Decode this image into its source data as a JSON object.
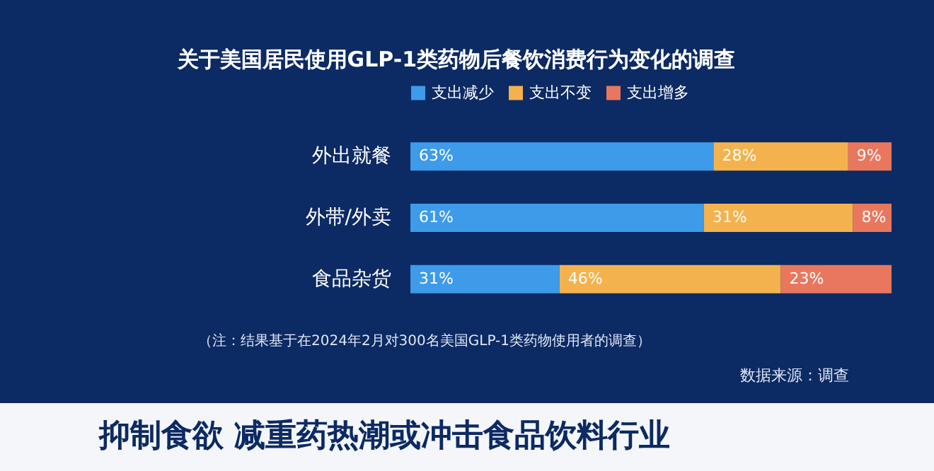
{
  "chart_data": {
    "type": "bar",
    "orientation": "horizontal",
    "stacked": true,
    "title": "关于美国居民使用GLP-1类药物后餐饮消费行为变化的调查",
    "categories": [
      "外出就餐",
      "外带/外卖",
      "食品杂货"
    ],
    "series": [
      {
        "name": "支出减少",
        "color": "#3d9be9",
        "values": [
          63,
          61,
          31
        ],
        "value_labels": [
          "63%",
          "61%",
          "31%"
        ]
      },
      {
        "name": "支出不变",
        "color": "#f4b24e",
        "values": [
          28,
          31,
          46
        ],
        "value_labels": [
          "28%",
          "31%",
          "46%"
        ]
      },
      {
        "name": "支出增多",
        "color": "#e9775d",
        "values": [
          9,
          8,
          23
        ],
        "value_labels": [
          "9%",
          "8%",
          "23%"
        ]
      }
    ],
    "legend": "top",
    "annotations": [
      "（注：结果基于在2024年2月对300名美国GLP-1类药物使用者的调查）",
      "数据来源：调查",
      "抑制食欲 减重药热潮或冲击食品饮料行业"
    ]
  }
}
